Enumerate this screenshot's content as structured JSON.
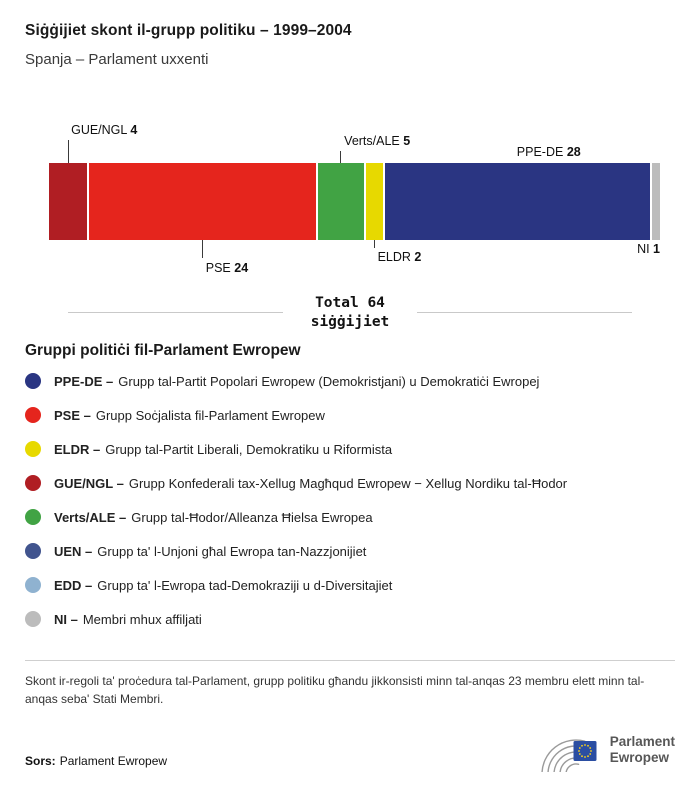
{
  "header": {
    "title": "Siġġijiet skont il-grupp politiku – 1999–2004",
    "subtitle": "Spanja – Parlament uxxenti"
  },
  "chart_data": {
    "type": "bar",
    "subtype": "horizontal-stacked",
    "title": "Siġġijiet skont il-grupp politiku – 1999–2004",
    "total_seats": 64,
    "total_line1": "Total 64",
    "total_line2": "siġġijiet",
    "categories": [
      "GUE/NGL",
      "PSE",
      "Verts/ALE",
      "ELDR",
      "PPE-DE",
      "NI"
    ],
    "values": [
      4,
      24,
      5,
      2,
      28,
      1
    ],
    "segments": [
      {
        "group": "GUE/NGL",
        "seats": 4,
        "color": "#b01e23",
        "label_position": "above"
      },
      {
        "group": "PSE",
        "seats": 24,
        "color": "#e5251d",
        "label_position": "below"
      },
      {
        "group": "Verts/ALE",
        "seats": 5,
        "color": "#41a344",
        "label_position": "above"
      },
      {
        "group": "ELDR",
        "seats": 2,
        "color": "#e7d900",
        "label_position": "below"
      },
      {
        "group": "PPE-DE",
        "seats": 28,
        "color": "#2a3582",
        "label_position": "above"
      },
      {
        "group": "NI",
        "seats": 1,
        "color": "#bcbcbc",
        "label_position": "below"
      }
    ]
  },
  "legend": {
    "heading": "Gruppi politiċi fil-Parlament Ewropew",
    "items": [
      {
        "abbr": "PPE-DE –",
        "desc": "Grupp tal-Partit Popolari Ewropew (Demokristjani) u Demokratiċi Ewropej",
        "color": "#2a3582"
      },
      {
        "abbr": "PSE –",
        "desc": "Grupp Soċjalista fil-Parlament Ewropew",
        "color": "#e5251d"
      },
      {
        "abbr": "ELDR –",
        "desc": "Grupp tal-Partit Liberali, Demokratiku u Riformista",
        "color": "#e7d900"
      },
      {
        "abbr": "GUE/NGL –",
        "desc": "Grupp Konfederali tax-Xellug Magħqud Ewropew − Xellug Nordiku tal-Ħodor",
        "color": "#b01e23"
      },
      {
        "abbr": "Verts/ALE –",
        "desc": "Grupp tal-Ħodor/Alleanza Ħielsa Ewropea",
        "color": "#41a344"
      },
      {
        "abbr": "UEN –",
        "desc": "Grupp ta' l-Unjoni għal Ewropa tan-Nazzjonijiet",
        "color": "#41548e"
      },
      {
        "abbr": "EDD –",
        "desc": "Grupp ta' l-Ewropa tad-Demokraziji u d-Diversitajiet",
        "color": "#8fb2d0"
      },
      {
        "abbr": "NI –",
        "desc": "Membri mhux affiljati",
        "color": "#bcbcbc"
      }
    ]
  },
  "footer": {
    "note": "Skont ir-regoli ta' proċedura tal-Parlament, grupp politiku għandu jikkonsisti minn tal-anqas 23 membru elett minn tal-anqas seba' Stati Membri.",
    "source_label": "Sors:",
    "source_value": "Parlament Ewropew",
    "logo_line1": "Parlament",
    "logo_line2": "Ewropew"
  }
}
